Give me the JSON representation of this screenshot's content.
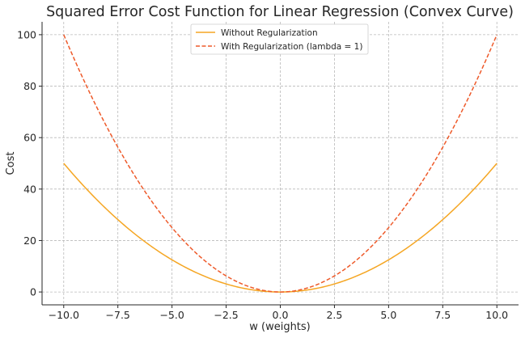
{
  "chart_data": {
    "type": "line",
    "title": "Squared Error Cost Function for Linear Regression (Convex Curve)",
    "xlabel": "w (weights)",
    "ylabel": "Cost",
    "xlim": [
      -11,
      11
    ],
    "ylim": [
      -5,
      105
    ],
    "xticks": [
      -10,
      -7.5,
      -5,
      -2.5,
      0,
      2.5,
      5,
      7.5,
      10
    ],
    "xtick_labels": [
      "−10.0",
      "−7.5",
      "−5.0",
      "−2.5",
      "0.0",
      "2.5",
      "5.0",
      "7.5",
      "10.0"
    ],
    "yticks": [
      0,
      20,
      40,
      60,
      80,
      100
    ],
    "ytick_labels": [
      "0",
      "20",
      "40",
      "60",
      "80",
      "100"
    ],
    "grid": true,
    "legend_position": "top-center",
    "x": [
      -10,
      -9,
      -8,
      -7,
      -6,
      -5,
      -4,
      -3,
      -2,
      -1,
      0,
      1,
      2,
      3,
      4,
      5,
      6,
      7,
      8,
      9,
      10
    ],
    "series": [
      {
        "name": "Without Regularization",
        "color": "#f5a623",
        "style": "solid",
        "values": [
          50,
          40.5,
          32,
          24.5,
          18,
          12.5,
          8,
          4.5,
          2,
          0.5,
          0,
          0.5,
          2,
          4.5,
          8,
          12.5,
          18,
          24.5,
          32,
          40.5,
          50
        ]
      },
      {
        "name": "With Regularization (lambda = 1)",
        "color": "#ee5a2a",
        "style": "dashed",
        "values": [
          100,
          81,
          64,
          49,
          36,
          25,
          16,
          9,
          4,
          1,
          0,
          1,
          4,
          9,
          16,
          25,
          36,
          49,
          64,
          81,
          100
        ]
      }
    ]
  }
}
